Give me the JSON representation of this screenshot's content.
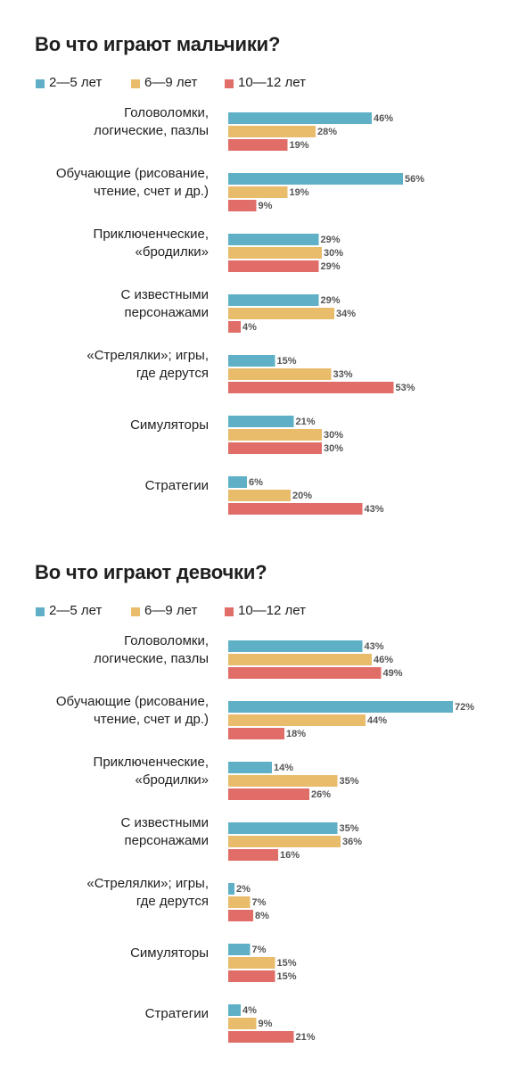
{
  "chart_data": [
    {
      "type": "bar",
      "orientation": "horizontal",
      "title": "Во что играют мальчики?",
      "categories": [
        [
          "Головоломки,",
          "логические, пазлы"
        ],
        [
          "Обучающие (рисование,",
          "чтение, счет и др.)"
        ],
        [
          "Приключенческие,",
          "«бродилки»"
        ],
        [
          "С известными",
          "персонажами"
        ],
        [
          "«Стрелялки»; игры,",
          "где дерутся"
        ],
        [
          "Симуляторы"
        ],
        [
          "Стратегии"
        ]
      ],
      "series": [
        {
          "name": "2—5 лет",
          "color": "#5fb0c6",
          "values": [
            46,
            56,
            29,
            29,
            15,
            21,
            6
          ]
        },
        {
          "name": "6—9 лет",
          "color": "#e9bc6c",
          "values": [
            28,
            19,
            30,
            34,
            33,
            30,
            20
          ]
        },
        {
          "name": "10—12 лет",
          "color": "#e06d68",
          "values": [
            19,
            9,
            29,
            4,
            53,
            30,
            43
          ]
        }
      ],
      "value_suffix": "%",
      "legend": "top-left",
      "grid": false
    },
    {
      "type": "bar",
      "orientation": "horizontal",
      "title": "Во что играют девочки?",
      "categories": [
        [
          "Головоломки,",
          "логические, пазлы"
        ],
        [
          "Обучающие (рисование,",
          "чтение, счет и др.)"
        ],
        [
          "Приключенческие,",
          "«бродилки»"
        ],
        [
          "С известными",
          "персонажами"
        ],
        [
          "«Стрелялки»; игры,",
          "где дерутся"
        ],
        [
          "Симуляторы"
        ],
        [
          "Стратегии"
        ]
      ],
      "series": [
        {
          "name": "2—5 лет",
          "color": "#5fb0c6",
          "values": [
            43,
            72,
            14,
            35,
            2,
            7,
            4
          ]
        },
        {
          "name": "6—9 лет",
          "color": "#e9bc6c",
          "values": [
            46,
            44,
            35,
            36,
            7,
            15,
            9
          ]
        },
        {
          "name": "10—12 лет",
          "color": "#e06d68",
          "values": [
            49,
            18,
            26,
            16,
            8,
            15,
            21
          ]
        }
      ],
      "value_suffix": "%",
      "legend": "top-left",
      "grid": false
    }
  ]
}
